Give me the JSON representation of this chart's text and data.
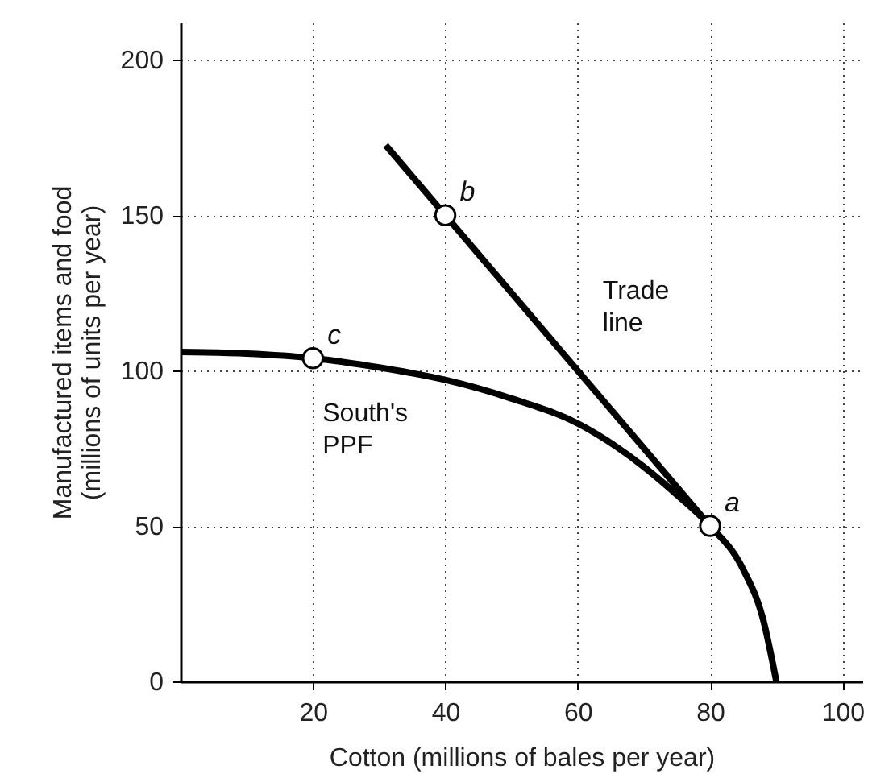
{
  "chart_data": {
    "type": "line",
    "xlabel": "Cotton (millions of bales per year)",
    "ylabel": "Manufactured items and food (millions of units per year)",
    "xlim": [
      0,
      103
    ],
    "ylim": [
      0,
      212
    ],
    "xticks": [
      20,
      40,
      60,
      80,
      100
    ],
    "yticks": [
      0,
      50,
      100,
      150,
      200
    ],
    "grid": true,
    "legend": false,
    "series": [
      {
        "name": "South's PPF",
        "color": "#000000",
        "x": [
          0,
          10,
          20,
          30,
          40,
          50,
          60,
          70,
          75,
          80,
          85,
          88,
          90
        ],
        "values": [
          106,
          105.5,
          104,
          101,
          97,
          91,
          83,
          69,
          60,
          50,
          36,
          20,
          0
        ]
      },
      {
        "name": "Trade line",
        "color": "#000000",
        "x": [
          31,
          80
        ],
        "values": [
          172.5,
          50
        ]
      },
      {
        "type": "scatter",
        "marker": "circle",
        "color": "#000000",
        "x": [
          80,
          40,
          20
        ],
        "values": [
          50,
          150,
          104
        ]
      }
    ],
    "annotations": [
      {
        "text": "a",
        "x": 80,
        "y": 50
      },
      {
        "text": "b",
        "x": 40,
        "y": 150
      },
      {
        "text": "c",
        "x": 20,
        "y": 104
      }
    ]
  }
}
